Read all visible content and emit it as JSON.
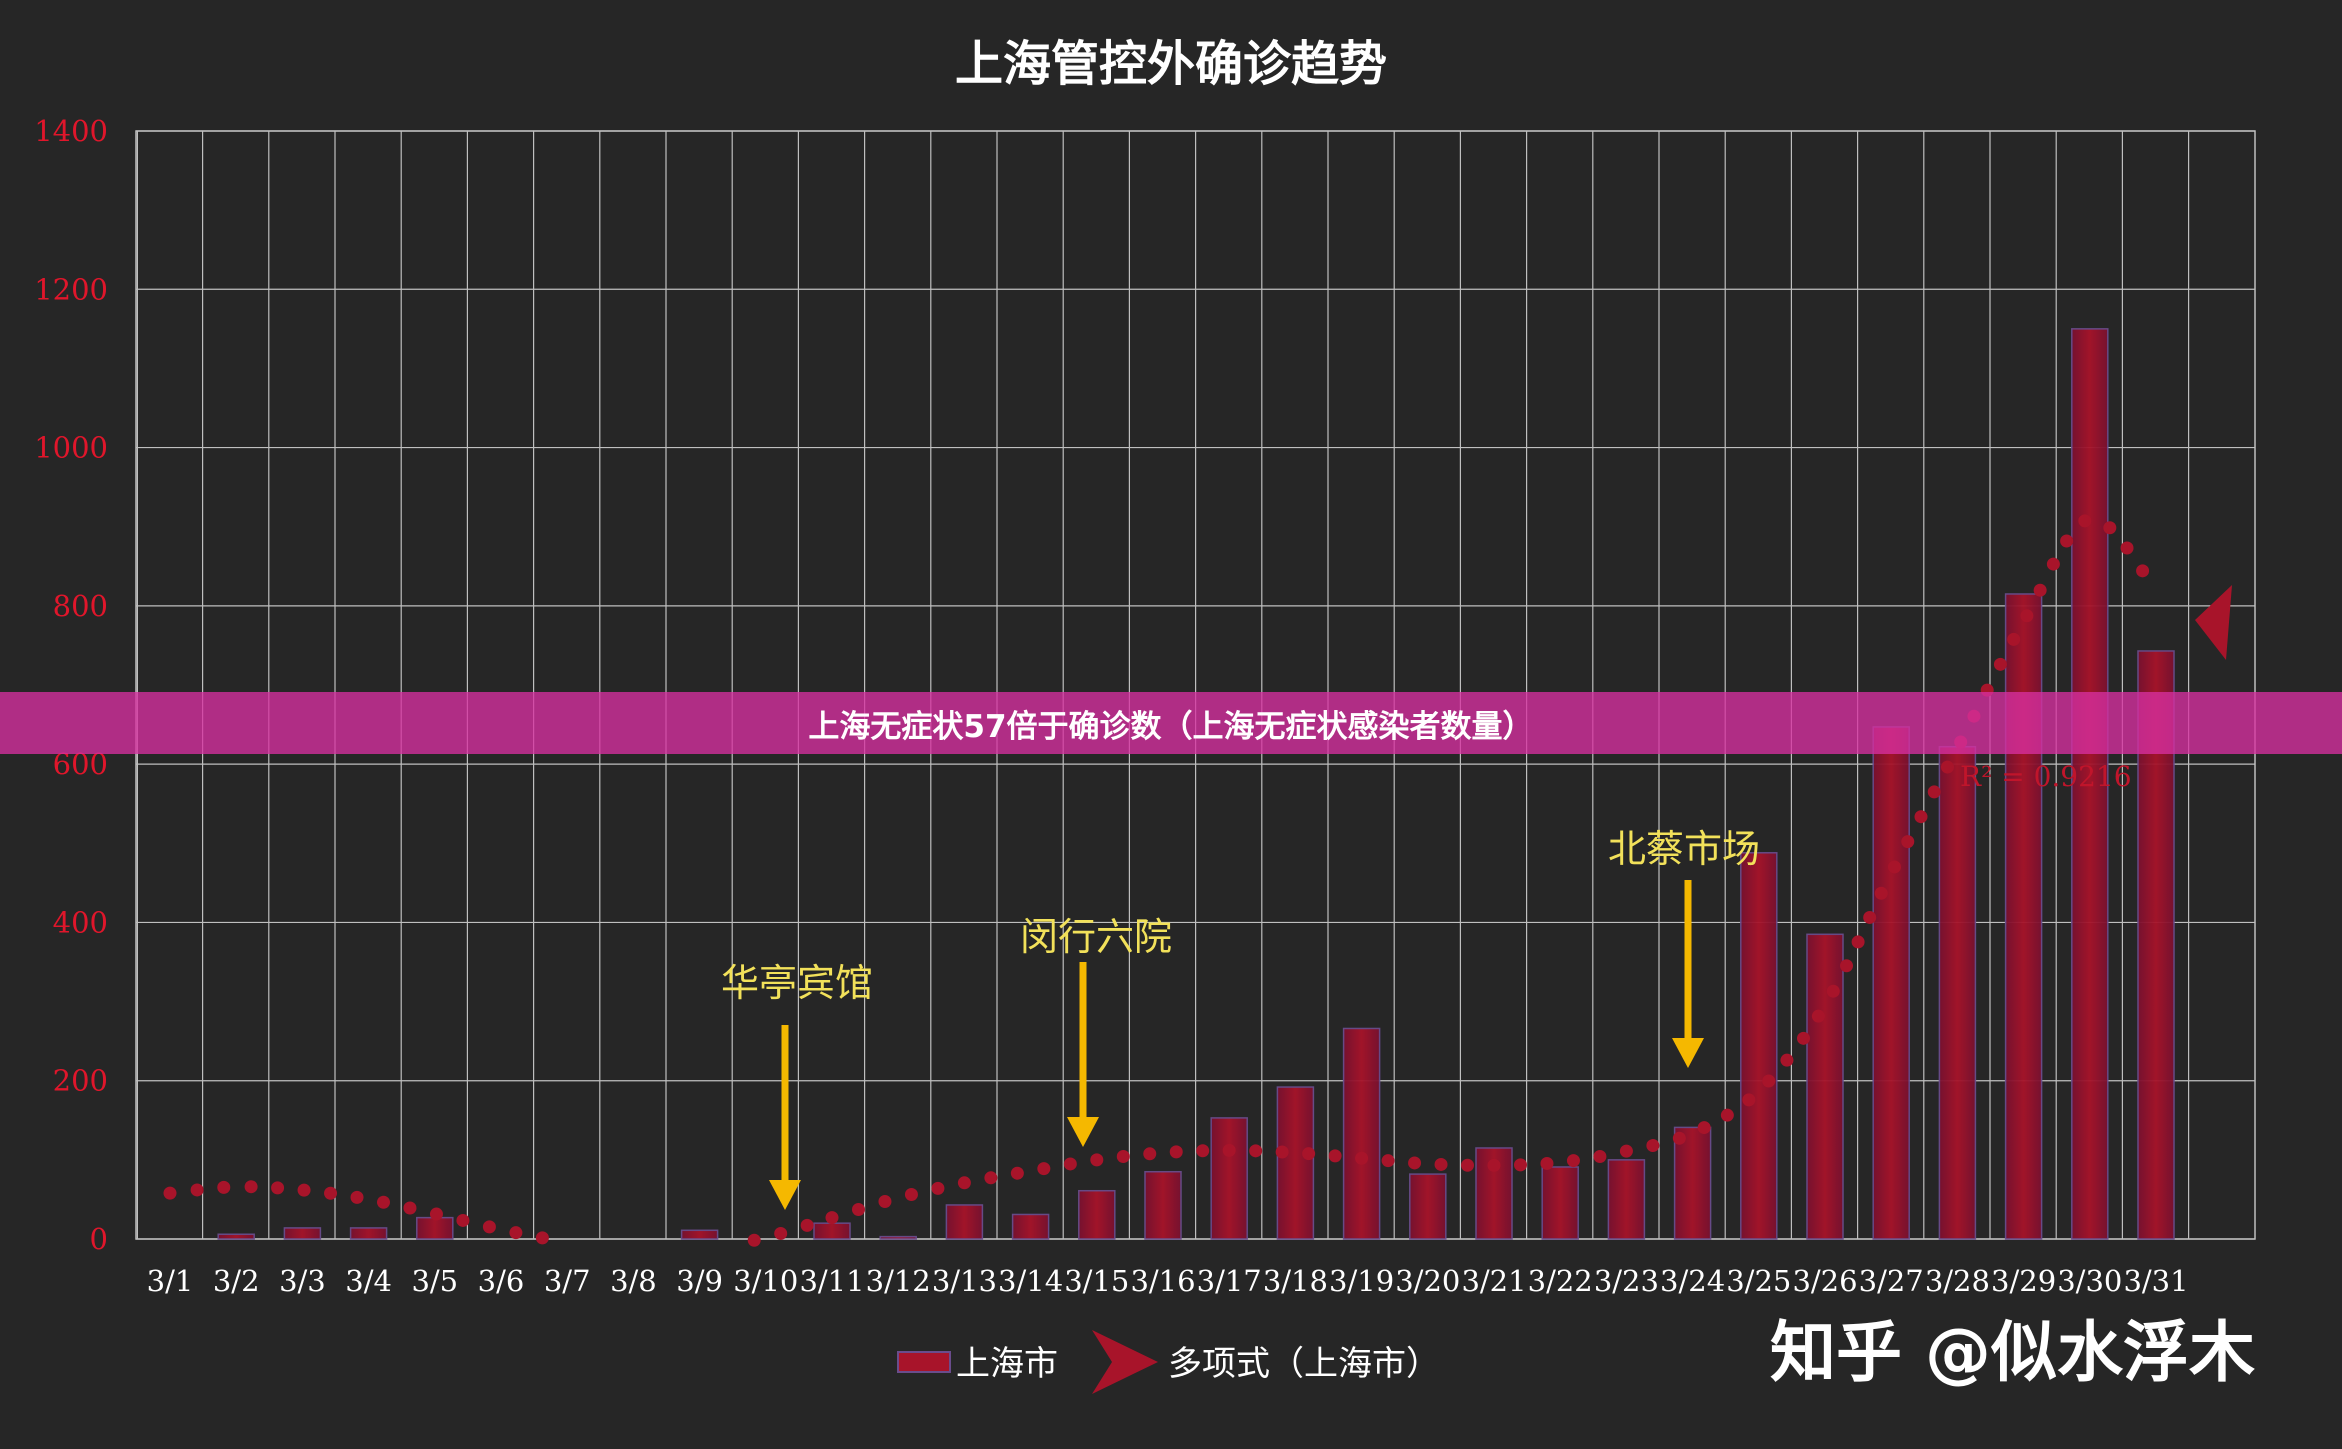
{
  "chart_data": {
    "type": "bar",
    "title": "上海管控外确诊趋势",
    "xlabel": "",
    "ylabel": "",
    "ylim": [
      0,
      1400
    ],
    "y_ticks": [
      0,
      200,
      400,
      600,
      800,
      1000,
      1200,
      1400
    ],
    "grid": true,
    "legend_position": "bottom",
    "categories": [
      "3/1",
      "3/2",
      "3/3",
      "3/4",
      "3/5",
      "3/6",
      "3/7",
      "3/8",
      "3/9",
      "3/10",
      "3/11",
      "3/12",
      "3/13",
      "3/14",
      "3/15",
      "3/16",
      "3/17",
      "3/18",
      "3/19",
      "3/20",
      "3/21",
      "3/22",
      "3/23",
      "3/24",
      "3/25",
      "3/26",
      "3/27",
      "3/28",
      "3/29",
      "3/30",
      "3/31"
    ],
    "series": [
      {
        "name": "上海市",
        "type": "bar",
        "color": "#a8142a",
        "values": [
          0,
          6,
          14,
          14,
          27,
          0,
          0,
          0,
          11,
          0,
          20,
          3,
          43,
          31,
          61,
          85,
          153,
          192,
          266,
          82,
          115,
          91,
          100,
          141,
          488,
          385,
          647,
          622,
          815,
          1150,
          743
        ]
      },
      {
        "name": "多项式（上海市）",
        "type": "trendline",
        "color": "#a8142a",
        "values": [
          58,
          66,
          62,
          50,
          32,
          12,
          -4,
          -14,
          -14,
          2,
          27,
          52,
          71,
          86,
          100,
          109,
          112,
          109,
          102,
          95,
          93,
          97,
          111,
          134,
          187,
          295,
          462,
          620,
          780,
          910,
          820
        ]
      }
    ],
    "annotations": [
      {
        "label": "华亭宾馆",
        "x": "3/10"
      },
      {
        "label": "闵行六院",
        "x": "3/15"
      },
      {
        "label": "北蔡市场",
        "x": "3/24"
      }
    ],
    "r_squared": "R² = 0.9216"
  },
  "legend": {
    "bar_label": "上海市",
    "trend_label": "多项式（上海市）"
  },
  "banner": {
    "text": "上海无症状57倍于确诊数（上海无症状感染者数量）"
  },
  "watermark": {
    "text": "知乎 @似水浮木"
  },
  "colors": {
    "background": "#262626",
    "grid": "#bfbfbf",
    "bar": "#a8142a",
    "arrow": "#f5b800",
    "annotation_text": "#f2e15a",
    "tick_y": "#e0162b",
    "banner": "#d730a0"
  }
}
